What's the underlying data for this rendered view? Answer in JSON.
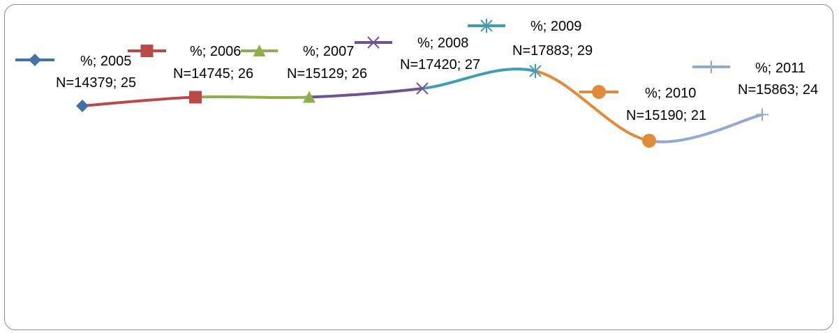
{
  "chart_data": {
    "type": "line",
    "title": "",
    "xlabel": "",
    "ylabel": "",
    "smooth": true,
    "grid": false,
    "legend_placement": "inline-with-labels",
    "series": [
      {
        "name": "%; 2005",
        "n_label": "N=14379; 25",
        "value": 25,
        "color": "#4472A8",
        "marker": "diamond"
      },
      {
        "name": "%; 2006",
        "n_label": "N=14745; 26",
        "value": 26,
        "color": "#B94A48",
        "marker": "square"
      },
      {
        "name": "%; 2007",
        "n_label": "N=15129; 26",
        "value": 26,
        "color": "#8FAE4E",
        "marker": "triangle"
      },
      {
        "name": "%; 2008",
        "n_label": "N=17420; 27",
        "value": 27,
        "color": "#6F5196",
        "marker": "x"
      },
      {
        "name": "%; 2009",
        "n_label": "N=17883; 29",
        "value": 29,
        "color": "#3E9DB3",
        "marker": "star"
      },
      {
        "name": "%; 2010",
        "n_label": "N=15190; 21",
        "value": 21,
        "color": "#E08A3C",
        "marker": "circle"
      },
      {
        "name": "%; 2011",
        "n_label": "N=15863; 24",
        "value": 24,
        "color": "#93A9D0",
        "marker": "plus"
      }
    ]
  }
}
